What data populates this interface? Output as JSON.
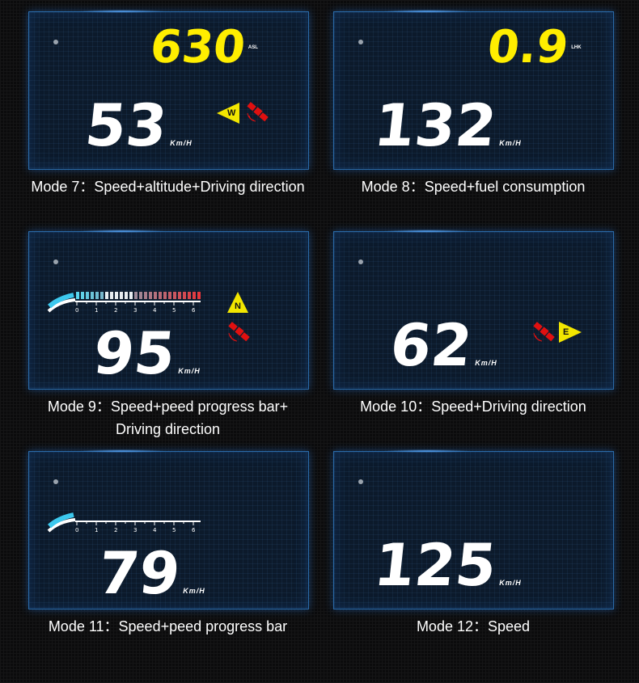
{
  "modes": [
    {
      "caption": "Mode 7：Speed+altitude+Driving direction",
      "speed": "53",
      "speed_unit": "Km/H",
      "top_value": "630",
      "top_unit": "ASL",
      "direction": "W"
    },
    {
      "caption": "Mode 8：Speed+fuel consumption",
      "speed": "132",
      "speed_unit": "Km/H",
      "top_value": "0.9",
      "top_unit": "LHK"
    },
    {
      "caption_line1": "Mode 9：Speed+peed progress bar+",
      "caption_line2": "Driving direction",
      "speed": "95",
      "speed_unit": "Km/H",
      "direction": "N",
      "progress_ticks": [
        "0",
        "1",
        "2",
        "3",
        "4",
        "5",
        "6"
      ],
      "progress_fill": 1.0
    },
    {
      "caption": "Mode 10：Speed+Driving direction",
      "speed": "62",
      "speed_unit": "Km/H",
      "direction": "E"
    },
    {
      "caption": "Mode 11：Speed+peed progress bar",
      "speed": "79",
      "speed_unit": "Km/H",
      "progress_ticks": [
        "0",
        "1",
        "2",
        "3",
        "4",
        "5",
        "6"
      ],
      "progress_fill": 0.0
    },
    {
      "caption": "Mode 12：Speed",
      "speed": "125",
      "speed_unit": "Km/H"
    }
  ],
  "colors": {
    "speed": "#ffffff",
    "top_value": "#ffee00",
    "compass": "#f2e600",
    "satellite": "#e01010",
    "panel_border": "#2a6aa8"
  }
}
